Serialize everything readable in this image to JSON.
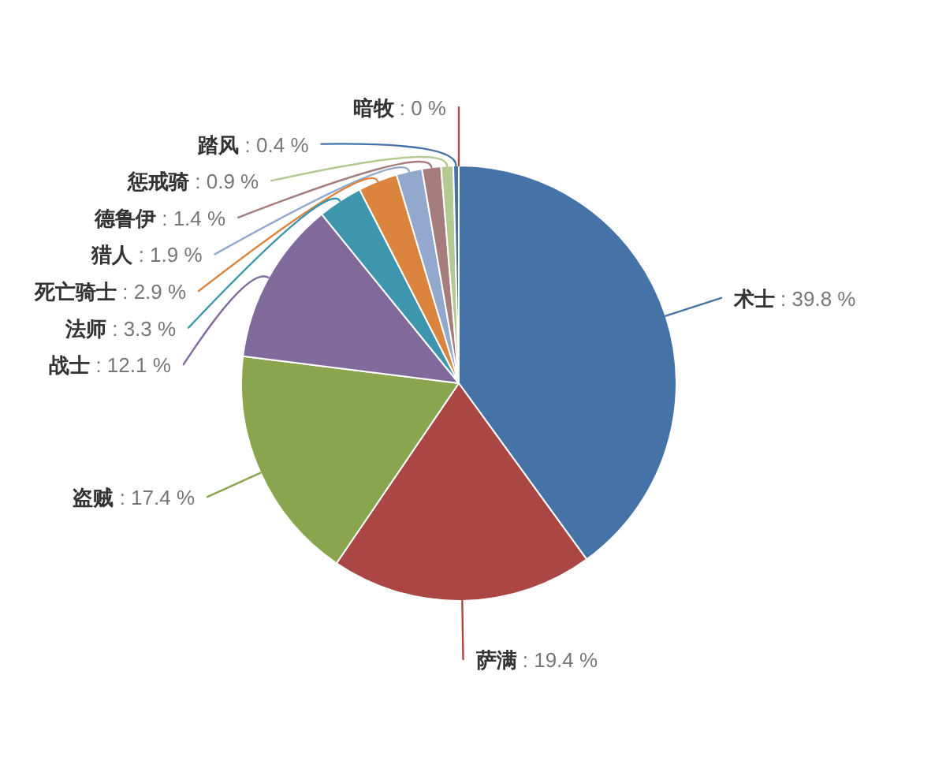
{
  "chart_data": {
    "type": "pie",
    "categories": [
      "术士",
      "萨满",
      "盗贼",
      "战士",
      "法师",
      "死亡骑士",
      "猎人",
      "德鲁伊",
      "惩戒骑",
      "踏风",
      "暗牧"
    ],
    "values": [
      39.8,
      19.4,
      17.4,
      12.1,
      3.3,
      2.9,
      1.9,
      1.4,
      0.9,
      0.4,
      0
    ],
    "colors": [
      "#4572a7",
      "#aa4643",
      "#89a54e",
      "#80699b",
      "#3d96ae",
      "#db843d",
      "#92a8cd",
      "#a47d7c",
      "#b5ca92",
      "#4572a7",
      "#aa4643"
    ],
    "value_labels": [
      ": 39.8 %",
      ": 19.4 %",
      ": 17.4 %",
      ": 12.1 %",
      ": 3.3 %",
      ": 2.9 %",
      ": 1.9 %",
      ": 1.4 %",
      ": 0.9 %",
      ": 0.4 %",
      ": 0 %"
    ]
  }
}
